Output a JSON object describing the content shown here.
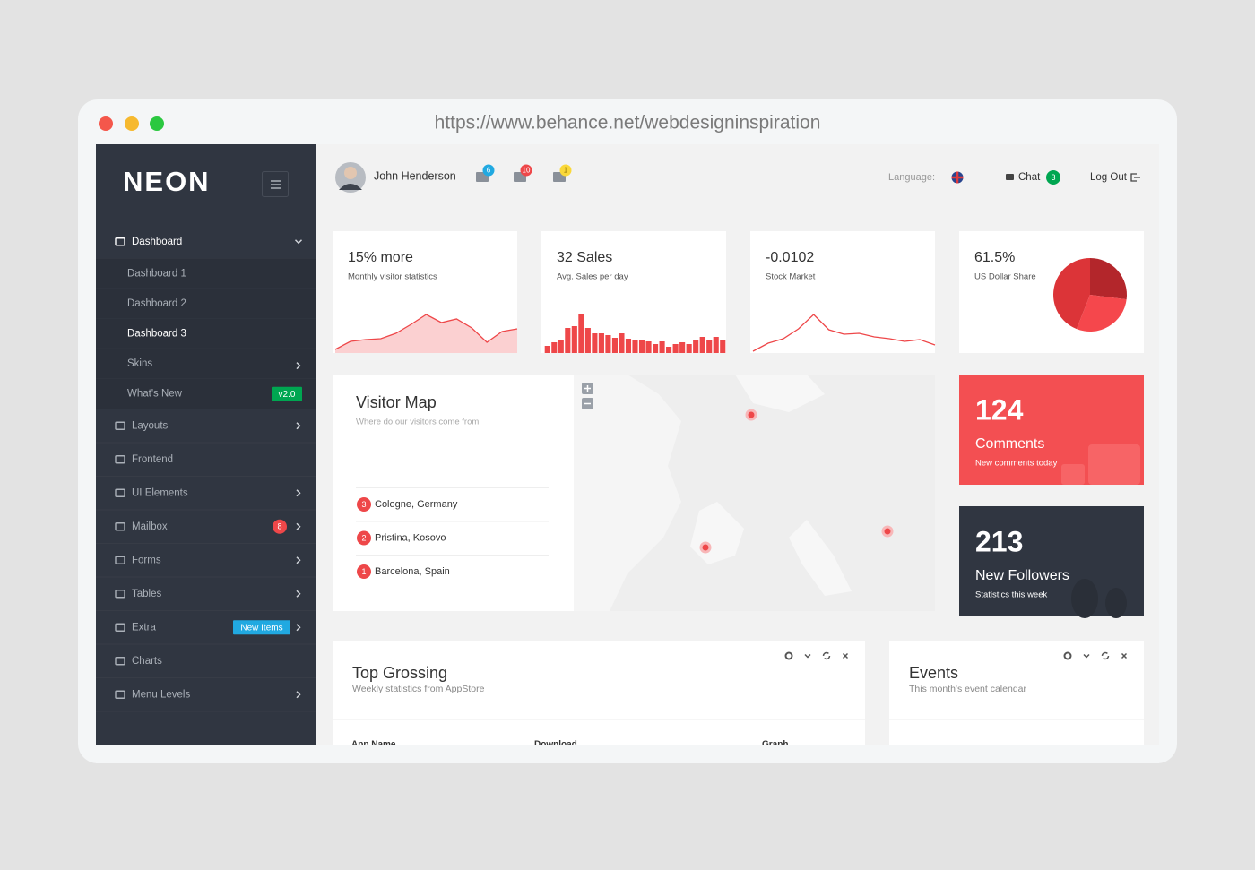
{
  "browser": {
    "url": "https://www.behance.net/webdesigninspiration"
  },
  "sidebar": {
    "logo": "NEON",
    "menu": [
      {
        "label": "Dashboard",
        "expandable": true,
        "children": [
          {
            "label": "Dashboard 1"
          },
          {
            "label": "Dashboard 2"
          },
          {
            "label": "Dashboard 3",
            "active": true
          },
          {
            "label": "Skins",
            "expandable": true
          },
          {
            "label": "What's New",
            "badge": "v2.0",
            "badge_color": "#00a651"
          }
        ]
      },
      {
        "label": "Layouts",
        "expandable": true
      },
      {
        "label": "Frontend"
      },
      {
        "label": "UI Elements",
        "expandable": true
      },
      {
        "label": "Mailbox",
        "expandable": true,
        "badge": 8,
        "badge_color": "#ee4749"
      },
      {
        "label": "Forms",
        "expandable": true
      },
      {
        "label": "Tables",
        "expandable": true
      },
      {
        "label": "Extra",
        "expandable": true,
        "badge": "New Items",
        "badge_color": "#21a9e1"
      },
      {
        "label": "Charts"
      },
      {
        "label": "Menu Levels",
        "expandable": true
      }
    ]
  },
  "header": {
    "user": "John Henderson",
    "notifications": [
      {
        "count": 6,
        "color": "#21a9e1"
      },
      {
        "count": 10,
        "color": "#ee4749"
      },
      {
        "count": 1,
        "color": "#fad839"
      }
    ],
    "language_label": "Language:",
    "chat": {
      "label": "Chat",
      "count": 3
    },
    "logout": "Log Out"
  },
  "stats": [
    {
      "title": "15% more",
      "subtitle": "Monthly visitor statistics",
      "chart": {
        "type": "area",
        "values": [
          4,
          13,
          15,
          16,
          22,
          32,
          43,
          34,
          38,
          28,
          12,
          24,
          27
        ],
        "ylim": [
          0,
          54
        ],
        "color": "#ee4749"
      }
    },
    {
      "title": "32 Sales",
      "subtitle": "Avg. Sales per day",
      "chart": {
        "type": "bars",
        "values": [
          8,
          12,
          15,
          28,
          30,
          44,
          28,
          22,
          22,
          20,
          17,
          22,
          16,
          14,
          14,
          13,
          10,
          13,
          7,
          10,
          12,
          10,
          14,
          18,
          14,
          18,
          14
        ],
        "ylim": [
          0,
          54
        ],
        "color": "#ee4749"
      }
    },
    {
      "title": "-0.0102",
      "subtitle": "Stock Market",
      "chart": {
        "type": "line",
        "values": [
          2,
          11,
          16,
          27,
          43,
          26,
          21,
          22,
          18,
          16,
          13,
          15,
          9
        ],
        "ylim": [
          0,
          54
        ],
        "color": "#ee4749"
      }
    },
    {
      "title": "61.5%",
      "subtitle": "US Dollar Share",
      "chart": {
        "type": "pie",
        "values": [
          27,
          29,
          44
        ],
        "colors": [
          "#b3262b",
          "#f5474c",
          "#dc3438"
        ]
      }
    }
  ],
  "visitor_map": {
    "title": "Visitor Map",
    "subtitle": "Where do our visitors come from",
    "locations": [
      {
        "count": 3,
        "place": "Cologne, Germany"
      },
      {
        "count": 2,
        "place": "Pristina, Kosovo"
      },
      {
        "count": 1,
        "place": "Barcelona, Spain"
      }
    ]
  },
  "tiles": [
    {
      "value": 124,
      "title": "Comments",
      "subtitle": "New comments today",
      "color": "#f34f52"
    },
    {
      "value": 213,
      "title": "New Followers",
      "subtitle": "Statistics this week",
      "color": "#303641"
    }
  ],
  "panels": [
    {
      "title": "Top Grossing",
      "subtitle": "Weekly statistics from AppStore",
      "columns": [
        "App Name",
        "Download",
        "Graph"
      ]
    },
    {
      "title": "Events",
      "subtitle": "This month's event calendar"
    }
  ]
}
